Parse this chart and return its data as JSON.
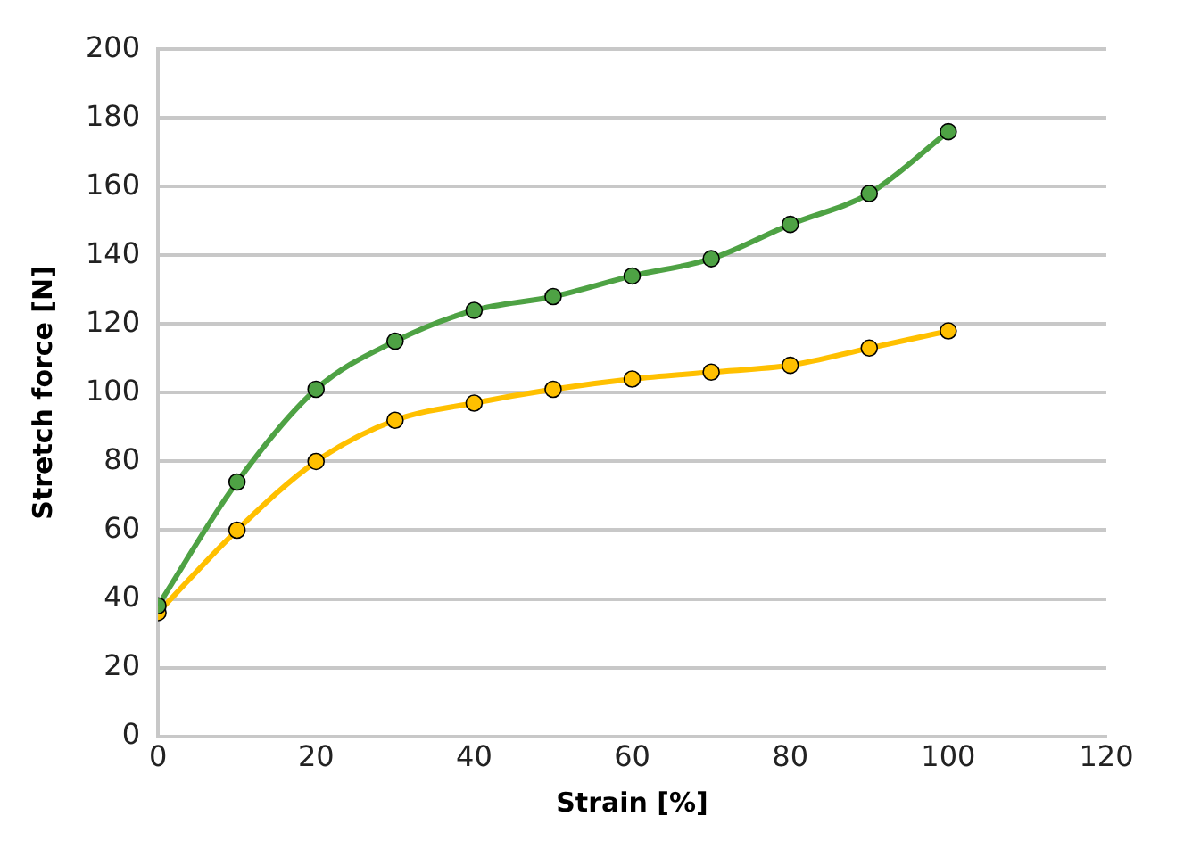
{
  "chart_data": {
    "type": "line",
    "xlabel": "Strain [%]",
    "ylabel": "Stretch force [N]",
    "x": [
      0,
      10,
      20,
      30,
      40,
      50,
      60,
      70,
      80,
      90,
      100
    ],
    "series": [
      {
        "color": "#4ea244",
        "values": [
          38,
          74,
          101,
          115,
          124,
          128,
          134,
          139,
          149,
          158,
          176
        ]
      },
      {
        "color": "#ffc000",
        "values": [
          36,
          60,
          80,
          92,
          97,
          101,
          104,
          106,
          108,
          113,
          118
        ]
      }
    ],
    "xlim": [
      0,
      120
    ],
    "xticks": [
      0,
      20,
      40,
      60,
      80,
      100,
      120
    ],
    "ylim": [
      0,
      200
    ],
    "yticks": [
      0,
      20,
      40,
      60,
      80,
      100,
      120,
      140,
      160,
      180,
      200
    ],
    "grid": "y",
    "marker": "circle",
    "line_style": "solid"
  }
}
